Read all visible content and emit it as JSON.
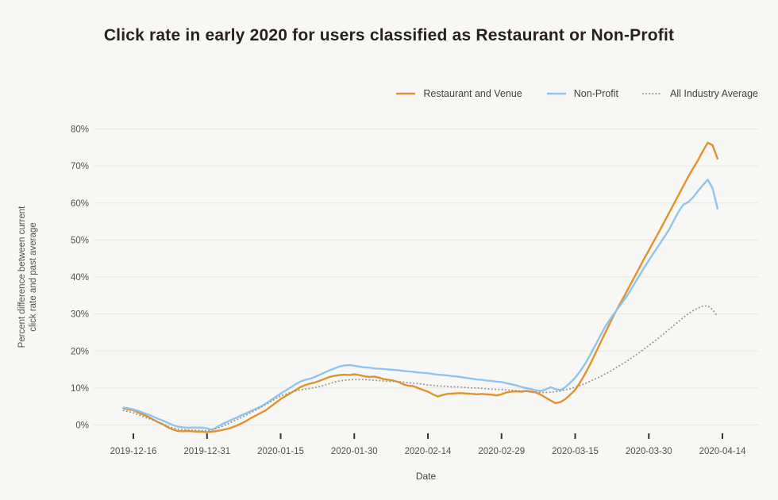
{
  "colors": {
    "background": "#F7F7F5",
    "gridline": "#E8E7E2",
    "tick_mark": "#3A342E",
    "axis_text": "#55504B",
    "title_text": "#29211B",
    "restaurant_orange": "#E2922D",
    "nonprofit_blue": "#90C4EC",
    "industry_gray": "#9D968E"
  },
  "chart_data": {
    "type": "line",
    "title": "Click rate in early 2020 for users classified as Restaurant or Non-Profit",
    "xlabel": "Date",
    "ylabel_lines": [
      "Percent difference between current",
      "click rate and past average"
    ],
    "ylim": [
      0,
      80
    ],
    "grid": "horizontal",
    "legend_position": "top-right",
    "x_tick_labels": [
      "2019-12-16",
      "2019-12-31",
      "2020-01-15",
      "2020-01-30",
      "2020-02-14",
      "2020-02-29",
      "2020-03-15",
      "2020-03-30",
      "2020-04-14"
    ],
    "y_tick_values": [
      0,
      10,
      20,
      30,
      40,
      50,
      60,
      70,
      80
    ],
    "y_tick_labels": [
      "0%",
      "10%",
      "20%",
      "30%",
      "40%",
      "50%",
      "60%",
      "70%",
      "80%"
    ],
    "x_resolution": "daily",
    "series": [
      {
        "name": "Restaurant and Venue",
        "color": "#E2922D",
        "style": "solid",
        "start_date": "2019-12-14",
        "values": [
          4.5,
          4.2,
          4.0,
          3.4,
          2.8,
          2.2,
          1.5,
          0.8,
          0.2,
          -0.6,
          -1.2,
          -1.6,
          -1.7,
          -1.6,
          -1.7,
          -1.8,
          -1.8,
          -1.9,
          -1.8,
          -1.6,
          -1.4,
          -1.1,
          -0.7,
          -0.2,
          0.4,
          1.1,
          1.9,
          2.6,
          3.3,
          4.0,
          5.0,
          6.0,
          7.0,
          7.8,
          8.6,
          9.4,
          10.2,
          10.8,
          11.2,
          11.5,
          12.0,
          12.5,
          13.0,
          13.3,
          13.5,
          13.6,
          13.5,
          13.7,
          13.5,
          13.2,
          13.0,
          13.1,
          12.8,
          12.4,
          12.2,
          12.0,
          11.6,
          11.0,
          10.6,
          10.5,
          10.0,
          9.5,
          9.0,
          8.3,
          7.7,
          8.1,
          8.4,
          8.5,
          8.6,
          8.6,
          8.5,
          8.4,
          8.3,
          8.4,
          8.3,
          8.2,
          8.0,
          8.3,
          8.8,
          9.0,
          9.1,
          9.0,
          9.2,
          9.0,
          8.8,
          8.2,
          7.4,
          6.6,
          5.9,
          6.2,
          7.0,
          8.2,
          9.5,
          11.5,
          13.8,
          16.3,
          19.0,
          21.8,
          24.6,
          27.3,
          30.0,
          32.4,
          34.8,
          37.3,
          39.8,
          42.3,
          44.8,
          47.2,
          49.6,
          52.0,
          54.5,
          57.0,
          59.5,
          62.0,
          64.5,
          67.0,
          69.3,
          71.5,
          74.0,
          76.3,
          75.6,
          72.0
        ]
      },
      {
        "name": "Non-Profit",
        "color": "#90C4EC",
        "style": "solid",
        "start_date": "2019-12-14",
        "values": [
          4.7,
          4.5,
          4.2,
          3.8,
          3.3,
          2.8,
          2.3,
          1.7,
          1.2,
          0.6,
          0.0,
          -0.4,
          -0.6,
          -0.7,
          -0.7,
          -0.7,
          -0.7,
          -0.9,
          -1.3,
          -0.6,
          0.2,
          0.8,
          1.4,
          2.0,
          2.6,
          3.2,
          3.8,
          4.4,
          5.0,
          5.8,
          6.7,
          7.6,
          8.5,
          9.3,
          10.1,
          11.0,
          11.7,
          12.2,
          12.5,
          13.0,
          13.6,
          14.2,
          14.8,
          15.3,
          15.8,
          16.1,
          16.2,
          16.0,
          15.8,
          15.6,
          15.5,
          15.3,
          15.2,
          15.1,
          15.0,
          14.9,
          14.8,
          14.6,
          14.5,
          14.4,
          14.2,
          14.1,
          14.0,
          13.8,
          13.6,
          13.5,
          13.4,
          13.2,
          13.1,
          12.9,
          12.7,
          12.5,
          12.3,
          12.2,
          12.0,
          11.9,
          11.7,
          11.6,
          11.3,
          11.0,
          10.7,
          10.3,
          10.0,
          9.7,
          9.4,
          9.2,
          9.6,
          10.2,
          9.7,
          9.4,
          10.2,
          11.4,
          12.8,
          14.5,
          16.5,
          18.8,
          21.3,
          23.8,
          26.3,
          28.4,
          30.2,
          32.0,
          33.8,
          35.8,
          38.0,
          40.2,
          42.4,
          44.5,
          46.5,
          48.5,
          50.5,
          52.5,
          55.0,
          57.5,
          59.5,
          60.2,
          61.5,
          63.2,
          64.8,
          66.3,
          64.0,
          58.5
        ]
      },
      {
        "name": "All Industry Average",
        "color": "#9D968E",
        "style": "dotted",
        "start_date": "2019-12-14",
        "values": [
          3.9,
          3.6,
          3.3,
          2.8,
          2.3,
          1.8,
          1.3,
          0.8,
          0.3,
          -0.3,
          -0.8,
          -1.1,
          -1.2,
          -1.3,
          -1.4,
          -1.4,
          -1.5,
          -1.5,
          -1.3,
          -0.9,
          -0.4,
          0.2,
          0.8,
          1.4,
          2.0,
          2.7,
          3.4,
          4.1,
          4.8,
          5.6,
          6.3,
          7.1,
          7.8,
          8.3,
          8.8,
          9.2,
          9.5,
          9.7,
          9.9,
          10.1,
          10.4,
          10.8,
          11.2,
          11.6,
          11.9,
          12.1,
          12.2,
          12.3,
          12.3,
          12.3,
          12.2,
          12.1,
          12.0,
          11.9,
          11.8,
          11.8,
          11.7,
          11.6,
          11.4,
          11.3,
          11.2,
          11.0,
          10.8,
          10.7,
          10.6,
          10.5,
          10.4,
          10.3,
          10.3,
          10.2,
          10.1,
          10.0,
          10.0,
          9.9,
          9.8,
          9.7,
          9.6,
          9.6,
          9.5,
          9.4,
          9.3,
          9.2,
          9.1,
          9.0,
          8.9,
          8.8,
          8.8,
          8.9,
          9.0,
          9.2,
          9.5,
          9.8,
          10.2,
          10.7,
          11.2,
          11.8,
          12.4,
          13.0,
          13.7,
          14.4,
          15.2,
          16.0,
          16.8,
          17.7,
          18.6,
          19.5,
          20.5,
          21.5,
          22.5,
          23.5,
          24.6,
          25.7,
          26.8,
          27.9,
          29.0,
          30.0,
          30.9,
          31.6,
          32.1,
          32.2,
          31.2,
          29.3
        ]
      }
    ]
  }
}
